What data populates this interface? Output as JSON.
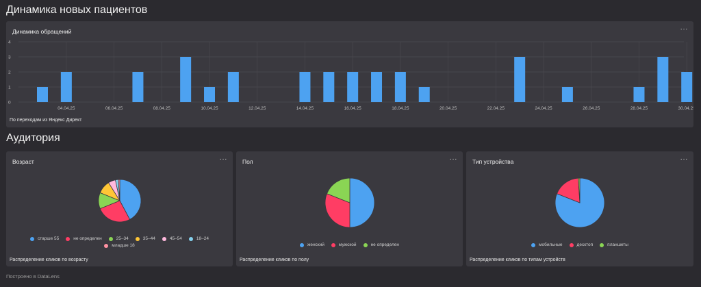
{
  "page": {
    "title": "Динамика новых пациентов",
    "section2": "Аудитория",
    "footer": "Построено в DataLens",
    "menu_glyph": "···"
  },
  "bar_card": {
    "title": "Динамика обращений",
    "footnote": "По переходам из Яндекс Директ"
  },
  "age_card": {
    "title": "Возраст",
    "footnote": "Распределение кликов по возрасту"
  },
  "sex_card": {
    "title": "Пол",
    "footnote": "Распределение кликов по полу"
  },
  "device_card": {
    "title": "Тип устройства",
    "footnote": "Распределение кликов по типам устройств"
  },
  "colors": {
    "blue": "#4da2f1",
    "red": "#ff3d64",
    "green": "#8ad554",
    "yellow": "#ffc636",
    "pink": "#ffb9dd",
    "lightblue": "#84d1ee",
    "rose": "#ff91a1"
  },
  "chart_data": [
    {
      "type": "bar",
      "title": "Динамика обращений",
      "x": [
        "03.04.25",
        "04.04.25",
        "05.04.25",
        "06.04.25",
        "07.04.25",
        "08.04.25",
        "09.04.25",
        "10.04.25",
        "11.04.25",
        "12.04.25",
        "13.04.25",
        "14.04.25",
        "15.04.25",
        "16.04.25",
        "17.04.25",
        "18.04.25",
        "19.04.25",
        "20.04.25",
        "21.04.25",
        "22.04.25",
        "23.04.25",
        "24.04.25",
        "25.04.25",
        "26.04.25",
        "27.04.25",
        "28.04.25",
        "29.04.25",
        "30.04.25"
      ],
      "values": [
        1,
        2,
        0,
        0,
        2,
        0,
        3,
        1,
        2,
        0,
        0,
        2,
        2,
        2,
        2,
        2,
        1,
        0,
        0,
        0,
        3,
        0,
        1,
        0,
        0,
        1,
        3,
        2
      ],
      "tick_labels": [
        "04.04.25",
        "06.04.25",
        "08.04.25",
        "10.04.25",
        "12.04.25",
        "14.04.25",
        "16.04.25",
        "18.04.25",
        "20.04.25",
        "22.04.25",
        "24.04.25",
        "26.04.25",
        "28.04.25",
        "30.04.25"
      ],
      "ylim": [
        0,
        4
      ],
      "yticks": [
        0,
        1,
        2,
        3,
        4
      ],
      "grid": true,
      "color": "#4da2f1"
    },
    {
      "type": "pie",
      "title": "Возраст",
      "labels": [
        "старше 55",
        "не определен",
        "25–34",
        "35–44",
        "45–54",
        "18–24",
        "младше 18"
      ],
      "values": [
        38,
        24,
        11,
        9,
        5,
        2,
        1
      ],
      "colors": [
        "#4da2f1",
        "#ff3d64",
        "#8ad554",
        "#ffc636",
        "#ffb9dd",
        "#84d1ee",
        "#ff91a1"
      ],
      "legend": "bottom"
    },
    {
      "type": "pie",
      "title": "Пол",
      "labels": [
        "женский",
        "мужской",
        "не определен"
      ],
      "values": [
        50,
        31,
        19
      ],
      "colors": [
        "#4da2f1",
        "#ff3d64",
        "#8ad554"
      ],
      "legend": "bottom"
    },
    {
      "type": "pie",
      "title": "Тип устройства",
      "labels": [
        "мобильные",
        "десктоп",
        "планшеты"
      ],
      "values": [
        81,
        18,
        1
      ],
      "colors": [
        "#4da2f1",
        "#ff3d64",
        "#8ad554"
      ],
      "legend": "bottom"
    }
  ]
}
